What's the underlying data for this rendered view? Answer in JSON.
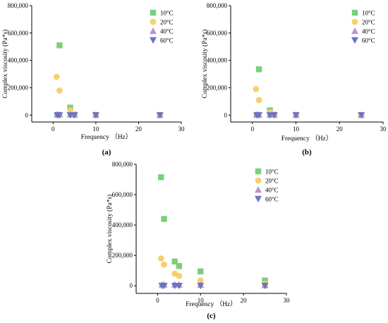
{
  "chart_data": [
    {
      "type": "scatter",
      "panel_label": "(a)",
      "xlabel": "Frequency （Hz）",
      "ylabel": "Complex viscosity (Pa*s)",
      "xlim": [
        -5,
        30
      ],
      "ylim": [
        -50000,
        800000
      ],
      "xticks": [
        0,
        10,
        20,
        30
      ],
      "yticks": [
        0,
        200000,
        400000,
        600000,
        800000
      ],
      "ytick_labels": [
        "0",
        "200,000",
        "400,000",
        "600,000",
        "800,000"
      ],
      "legend_position": "top-right",
      "series": [
        {
          "name": "10°C",
          "marker": "square",
          "color": "#7ccf7a",
          "points": [
            [
              1,
              2000
            ],
            [
              1.5,
              510000
            ],
            [
              4,
              55000
            ],
            [
              5,
              3000
            ],
            [
              10,
              1500
            ],
            [
              25,
              1000
            ]
          ]
        },
        {
          "name": "20°C",
          "marker": "circle",
          "color": "#f7cf72",
          "points": [
            [
              0.8,
              280000
            ],
            [
              1.5,
              180000
            ],
            [
              4,
              35000
            ],
            [
              5,
              2000
            ],
            [
              10,
              1000
            ],
            [
              25,
              800
            ]
          ]
        },
        {
          "name": "40°C",
          "marker": "triangle-up",
          "color": "#b794d4",
          "points": [
            [
              1,
              5000
            ],
            [
              1.5,
              5000
            ],
            [
              4,
              5000
            ],
            [
              5,
              4000
            ],
            [
              10,
              3000
            ],
            [
              25,
              2000
            ]
          ]
        },
        {
          "name": "60°C",
          "marker": "triangle-down",
          "color": "#6a74c2",
          "points": [
            [
              1,
              0
            ],
            [
              1.5,
              0
            ],
            [
              4,
              0
            ],
            [
              5,
              0
            ],
            [
              10,
              0
            ],
            [
              25,
              0
            ]
          ]
        }
      ]
    },
    {
      "type": "scatter",
      "panel_label": "(b)",
      "xlabel": "Frequency （Hz）",
      "ylabel": "Complex viscosity (Pa*s)",
      "xlim": [
        -5,
        30
      ],
      "ylim": [
        -50000,
        800000
      ],
      "xticks": [
        0,
        10,
        20,
        30
      ],
      "yticks": [
        0,
        200000,
        400000,
        600000,
        800000
      ],
      "ytick_labels": [
        "0",
        "200,000",
        "400,000",
        "600,000",
        "800,000"
      ],
      "legend_position": "top-right",
      "series": [
        {
          "name": "10°C",
          "marker": "square",
          "color": "#7ccf7a",
          "points": [
            [
              1,
              2000
            ],
            [
              1.5,
              335000
            ],
            [
              4,
              35000
            ],
            [
              5,
              3000
            ],
            [
              10,
              1500
            ],
            [
              25,
              1000
            ]
          ]
        },
        {
          "name": "20°C",
          "marker": "circle",
          "color": "#f7cf72",
          "points": [
            [
              0.8,
              190000
            ],
            [
              1.5,
              110000
            ],
            [
              4,
              20000
            ],
            [
              5,
              2000
            ],
            [
              10,
              1000
            ],
            [
              25,
              800
            ]
          ]
        },
        {
          "name": "40°C",
          "marker": "triangle-up",
          "color": "#b794d4",
          "points": [
            [
              1,
              4000
            ],
            [
              1.5,
              4000
            ],
            [
              4,
              4000
            ],
            [
              5,
              3000
            ],
            [
              10,
              2500
            ],
            [
              25,
              2000
            ]
          ]
        },
        {
          "name": "60°C",
          "marker": "triangle-down",
          "color": "#6a74c2",
          "points": [
            [
              1,
              0
            ],
            [
              1.5,
              0
            ],
            [
              4,
              0
            ],
            [
              5,
              0
            ],
            [
              10,
              0
            ],
            [
              25,
              0
            ]
          ]
        }
      ]
    },
    {
      "type": "scatter",
      "panel_label": "(c)",
      "xlabel": "Frequency （Hz）",
      "ylabel": "Complex viscosity (Pa*s)",
      "xlim": [
        -5,
        30
      ],
      "ylim": [
        -50000,
        800000
      ],
      "xticks": [
        0,
        10,
        20,
        30
      ],
      "yticks": [
        0,
        200000,
        400000,
        600000,
        800000
      ],
      "ytick_labels": [
        "0",
        "200,000",
        "400,000",
        "600,000",
        "800,000"
      ],
      "legend_position": "top-right",
      "series": [
        {
          "name": "10°C",
          "marker": "square",
          "color": "#7ccf7a",
          "points": [
            [
              0.8,
              715000
            ],
            [
              1.5,
              440000
            ],
            [
              4,
              160000
            ],
            [
              5,
              130000
            ],
            [
              10,
              95000
            ],
            [
              25,
              35000
            ]
          ]
        },
        {
          "name": "20°C",
          "marker": "circle",
          "color": "#f7cf72",
          "points": [
            [
              0.8,
              180000
            ],
            [
              1.5,
              140000
            ],
            [
              4,
              80000
            ],
            [
              5,
              65000
            ],
            [
              10,
              35000
            ],
            [
              25,
              12000
            ]
          ]
        },
        {
          "name": "40°C",
          "marker": "triangle-up",
          "color": "#b794d4",
          "points": [
            [
              1,
              8000
            ],
            [
              1.5,
              8000
            ],
            [
              4,
              8000
            ],
            [
              5,
              7000
            ],
            [
              10,
              6000
            ],
            [
              25,
              4000
            ]
          ]
        },
        {
          "name": "60°C",
          "marker": "triangle-down",
          "color": "#6a74c2",
          "points": [
            [
              1,
              0
            ],
            [
              1.5,
              0
            ],
            [
              4,
              0
            ],
            [
              5,
              0
            ],
            [
              10,
              0
            ],
            [
              25,
              0
            ]
          ]
        }
      ]
    }
  ]
}
